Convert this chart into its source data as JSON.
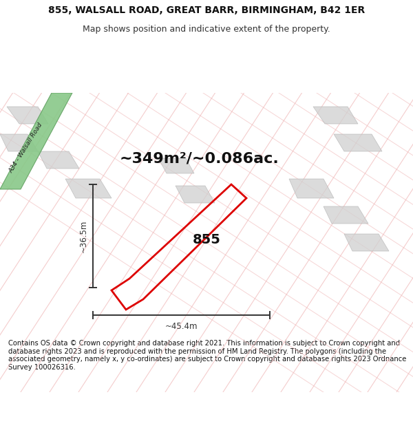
{
  "title_line1": "855, WALSALL ROAD, GREAT BARR, BIRMINGHAM, B42 1ER",
  "title_line2": "Map shows position and indicative extent of the property.",
  "area_text": "~349m²/~0.086ac.",
  "label_855": "855",
  "dim_width": "~45.4m",
  "dim_height": "~36.5m",
  "road_label": "A34 - Walsall Road",
  "footer_text": "Contains OS data © Crown copyright and database right 2021. This information is subject to Crown copyright and database rights 2023 and is reproduced with the permission of HM Land Registry. The polygons (including the associated geometry, namely x, y co-ordinates) are subject to Crown copyright and database rights 2023 Ordnance Survey 100026316.",
  "bg_color": "#ffffff",
  "map_bg": "#f0f0f0",
  "lpink": "#f0b8b8",
  "road_green": "#88c888",
  "road_green_edge": "#60a060",
  "parcel_red": "#dd0000",
  "gray_fill": "#d0d0d0",
  "gray_edge": "#b0b0b0",
  "dim_color": "#333333",
  "title_fontsize": 10,
  "subtitle_fontsize": 9,
  "area_fontsize": 16,
  "label_fontsize": 14,
  "footer_fontsize": 7.2,
  "dim_fontsize": 8.5,
  "road_label_fontsize": 6.5
}
